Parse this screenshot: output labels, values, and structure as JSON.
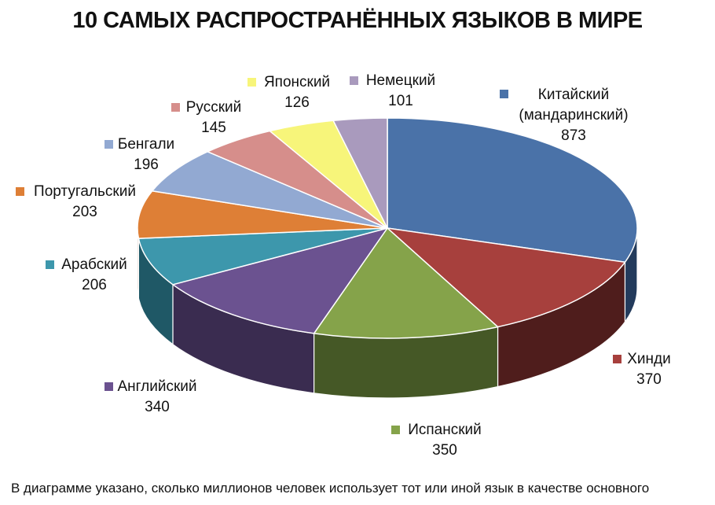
{
  "title": "10 САМЫХ РАСПРОСТРАНЁННЫХ ЯЗЫКОВ В МИРЕ",
  "footnote": "В диаграмме указано, сколько миллионов человек использует тот или иной язык в качестве основного",
  "chart_data": {
    "type": "pie",
    "title": "10 САМЫХ РАСПРОСТРАНЁННЫХ ЯЗЫКОВ В МИРЕ",
    "style": "3d",
    "legend": "labels beside slices",
    "slices": [
      {
        "label": "Китайский (мандаринский)",
        "label_lines": [
          "Китайский",
          "(мандаринский)"
        ],
        "value": 873,
        "value_text": "873",
        "color": "#4A72A8",
        "side": "#233B5C"
      },
      {
        "label": "Хинди",
        "label_lines": [
          "Хинди"
        ],
        "value": 370,
        "value_text": "370",
        "color": "#A7403D",
        "side": "#4F1D1C"
      },
      {
        "label": "Испанский",
        "label_lines": [
          "Испанский"
        ],
        "value": 350,
        "value_text": "350",
        "color": "#85A34A",
        "side": "#455826"
      },
      {
        "label": "Английский",
        "label_lines": [
          "Английский"
        ],
        "value": 340,
        "value_text": "340",
        "color": "#6B5290",
        "side": "#3A2C50"
      },
      {
        "label": "Арабский",
        "label_lines": [
          "Арабский"
        ],
        "value": 206,
        "value_text": "206",
        "color": "#3D97AC",
        "side": "#1F5866"
      },
      {
        "label": "Португальский",
        "label_lines": [
          "Португальский"
        ],
        "value": 203,
        "value_text": "203",
        "color": "#DE7F36",
        "side": "#8A4A1C"
      },
      {
        "label": "Бенгали",
        "label_lines": [
          "Бенгали"
        ],
        "value": 196,
        "value_text": "196",
        "color": "#92A9D2",
        "side": "#5D6F91"
      },
      {
        "label": "Русский",
        "label_lines": [
          "Русский"
        ],
        "value": 145,
        "value_text": "145",
        "color": "#D68E8B",
        "side": "#8F5856"
      },
      {
        "label": "Японский",
        "label_lines": [
          "Японский"
        ],
        "value": 126,
        "value_text": "126",
        "color": "#F7F57A",
        "side": "#A6A447"
      },
      {
        "label": "Немецкий",
        "label_lines": [
          "Немецкий"
        ],
        "value": 101,
        "value_text": "101",
        "color": "#A99ABD",
        "side": "#6C5F7E"
      }
    ]
  }
}
